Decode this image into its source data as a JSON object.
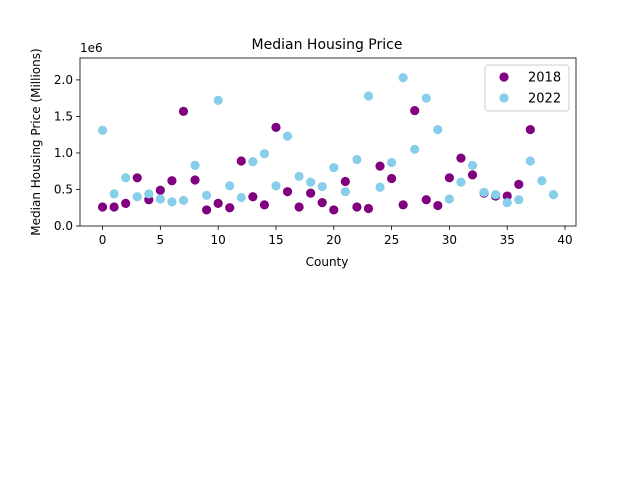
{
  "chart_data": {
    "type": "scatter",
    "title": "Median Housing Price",
    "xlabel": "County",
    "ylabel": "Median Housing Price (Millions)",
    "offset_label": "1e6",
    "xlim": [
      -1.95,
      40.95
    ],
    "ylim": [
      0,
      2.3
    ],
    "xticks": [
      0,
      5,
      10,
      15,
      20,
      25,
      30,
      35,
      40
    ],
    "yticks": [
      0.0,
      0.5,
      1.0,
      1.5,
      2.0
    ],
    "ytick_labels": [
      "0.0",
      "0.5",
      "1.0",
      "1.5",
      "2.0"
    ],
    "grid": false,
    "legend_position": "top-right",
    "series": [
      {
        "name": "2018",
        "color": "#800080",
        "x": [
          0,
          1,
          2,
          3,
          4,
          5,
          6,
          7,
          8,
          9,
          10,
          11,
          12,
          13,
          14,
          15,
          16,
          17,
          18,
          19,
          20,
          21,
          22,
          23,
          24,
          25,
          26,
          27,
          28,
          29,
          30,
          31,
          32,
          33,
          34,
          35,
          36,
          37
        ],
        "y": [
          0.26,
          0.26,
          0.31,
          0.66,
          0.36,
          0.49,
          0.62,
          1.57,
          0.63,
          0.22,
          0.31,
          0.25,
          0.89,
          0.4,
          0.29,
          1.35,
          0.47,
          0.26,
          0.45,
          0.32,
          0.22,
          0.61,
          0.26,
          0.24,
          0.82,
          0.65,
          0.29,
          1.58,
          0.36,
          0.28,
          0.66,
          0.93,
          0.7,
          0.45,
          0.41,
          0.41,
          0.57,
          1.32
        ]
      },
      {
        "name": "2022",
        "color": "#87CEEB",
        "x": [
          0,
          1,
          2,
          3,
          4,
          5,
          6,
          7,
          8,
          9,
          10,
          11,
          12,
          13,
          14,
          15,
          16,
          17,
          18,
          19,
          20,
          21,
          22,
          23,
          24,
          25,
          26,
          27,
          28,
          29,
          30,
          31,
          32,
          33,
          34,
          35,
          36,
          37,
          38,
          39
        ],
        "y": [
          1.31,
          0.44,
          0.66,
          0.4,
          0.44,
          0.37,
          0.33,
          0.35,
          0.83,
          0.42,
          1.72,
          0.55,
          0.39,
          0.88,
          0.99,
          0.55,
          1.23,
          0.68,
          0.6,
          0.54,
          0.8,
          0.47,
          0.91,
          1.78,
          0.53,
          0.87,
          2.03,
          1.05,
          1.75,
          1.32,
          0.37,
          0.6,
          0.83,
          0.46,
          0.43,
          0.32,
          0.36,
          0.89,
          0.62,
          0.43
        ]
      }
    ]
  }
}
